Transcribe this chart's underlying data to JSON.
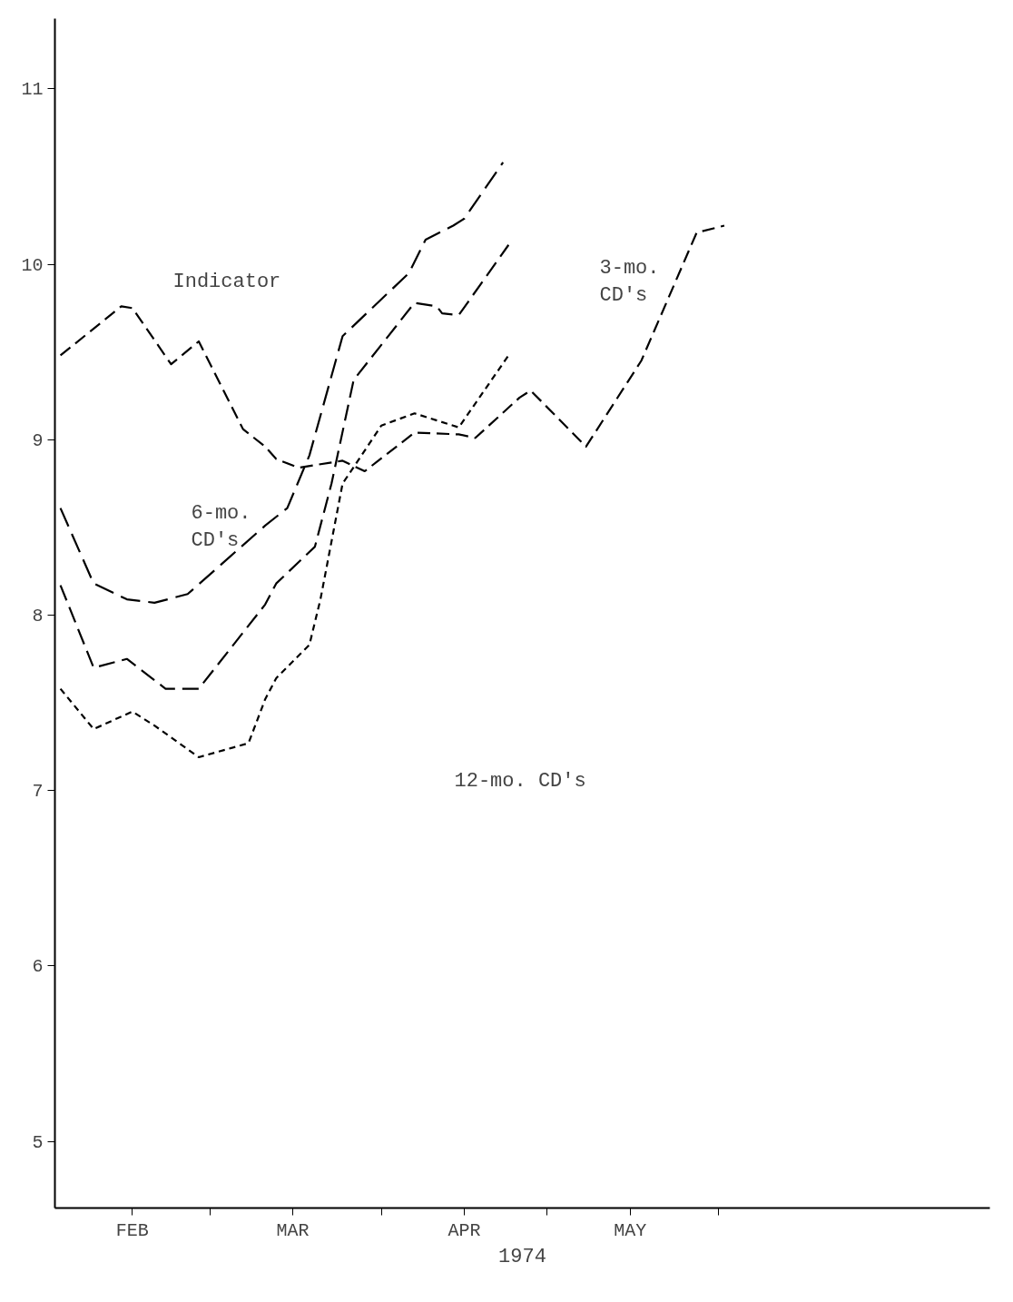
{
  "chart_data": {
    "type": "line",
    "xlabel": "1974",
    "xlim": [
      "1974-02-01",
      "1974-07-20"
    ],
    "ylim": [
      4.62,
      11.4
    ],
    "xticks": [
      {
        "value": "1974-02-15",
        "label": "FEB"
      },
      {
        "value": "1974-03-01",
        "label": null
      },
      {
        "value": "1974-03-16",
        "label": "MAR"
      },
      {
        "value": "1974-04-01",
        "label": null
      },
      {
        "value": "1974-04-16",
        "label": "APR"
      },
      {
        "value": "1974-05-01",
        "label": null
      },
      {
        "value": "1974-05-16",
        "label": "MAY"
      },
      {
        "value": "1974-06-01",
        "label": null
      }
    ],
    "yticks": [
      5,
      6,
      7,
      8,
      9,
      10,
      11
    ],
    "grid": false,
    "marker": "none",
    "line_style": "dashed",
    "series": [
      {
        "color": "#000000",
        "x": [
          "1974-02-02",
          "1974-02-13",
          "1974-02-15",
          "1974-02-22",
          "1974-02-27",
          "1974-03-07",
          "1974-03-11",
          "1974-03-13",
          "1974-03-17",
          "1974-03-25",
          "1974-03-29",
          "1974-04-07",
          "1974-04-15",
          "1974-04-18",
          "1974-04-26",
          "1974-04-28",
          "1974-05-08",
          "1974-05-18",
          "1974-05-28",
          "1974-06-02"
        ],
        "values": [
          9.48,
          9.76,
          9.75,
          9.43,
          9.56,
          9.06,
          8.96,
          8.89,
          8.84,
          8.88,
          8.82,
          9.04,
          9.03,
          9.01,
          9.24,
          9.28,
          8.96,
          9.45,
          10.18,
          10.22
        ]
      },
      {
        "color": "#000000",
        "x": [
          "1974-02-02",
          "1974-02-08",
          "1974-02-14",
          "1974-02-19",
          "1974-02-25",
          "1974-03-11",
          "1974-03-15",
          "1974-03-19",
          "1974-03-25",
          "1974-04-06",
          "1974-04-09",
          "1974-04-14",
          "1974-04-16",
          "1974-04-23"
        ],
        "values": [
          8.61,
          8.18,
          8.09,
          8.07,
          8.12,
          8.51,
          8.61,
          8.91,
          9.59,
          9.95,
          10.14,
          10.22,
          10.26,
          10.58
        ]
      },
      {
        "color": "#000000",
        "x": [
          "1974-02-02",
          "1974-02-08",
          "1974-02-14",
          "1974-02-21",
          "1974-02-27",
          "1974-03-11",
          "1974-03-13",
          "1974-03-20",
          "1974-03-23",
          "1974-03-27",
          "1974-04-07",
          "1974-04-11",
          "1974-04-12",
          "1974-04-15",
          "1974-04-24"
        ],
        "values": [
          8.17,
          7.7,
          7.75,
          7.58,
          7.58,
          8.06,
          8.18,
          8.39,
          8.75,
          9.34,
          9.78,
          9.76,
          9.72,
          9.71,
          10.11
        ]
      },
      {
        "color": "#000000",
        "x": [
          "1974-02-02",
          "1974-02-08",
          "1974-02-15",
          "1974-02-19",
          "1974-02-27",
          "1974-03-08",
          "1974-03-11",
          "1974-03-13",
          "1974-03-19",
          "1974-03-21",
          "1974-03-25",
          "1974-03-28",
          "1974-04-01",
          "1974-04-07",
          "1974-04-15",
          "1974-04-24"
        ],
        "values": [
          7.58,
          7.35,
          7.45,
          7.37,
          7.19,
          7.27,
          7.52,
          7.64,
          7.83,
          8.09,
          8.75,
          8.89,
          9.08,
          9.15,
          9.07,
          9.48
        ]
      }
    ],
    "annotations": [
      "Indicator",
      "6-mo.\nCD's",
      "3-mo.\nCD's",
      "12-mo. CD's"
    ]
  }
}
